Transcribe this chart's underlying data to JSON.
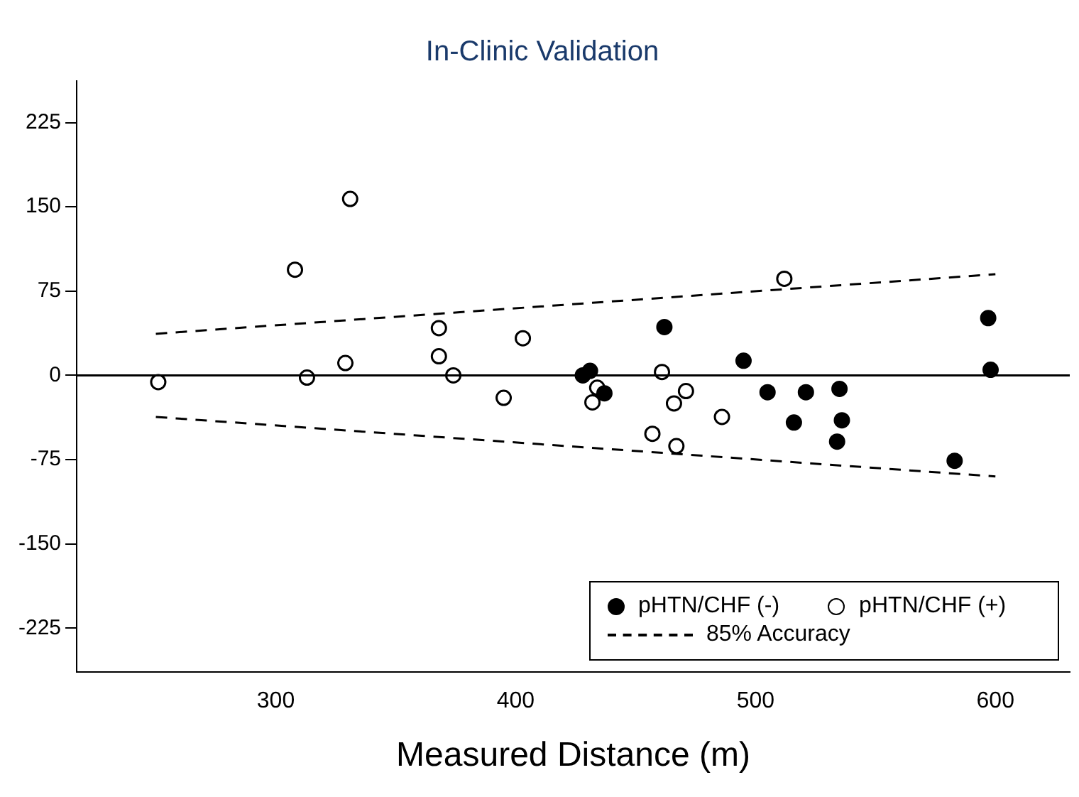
{
  "chart_data": {
    "type": "scatter",
    "title": "In-Clinic Validation",
    "xlabel": "Measured Distance (m)",
    "xlim": [
      217,
      631
    ],
    "xticks": [
      300,
      400,
      500,
      600
    ],
    "ylim": [
      -264,
      262
    ],
    "yticks": [
      -225,
      -150,
      -75,
      0,
      75,
      150,
      225
    ],
    "grid": false,
    "legend": "bottom right",
    "marker": "circle",
    "ref_lines": [
      {
        "axis": "y",
        "value": 0
      }
    ],
    "series": [
      {
        "name": "pHTN/CHF (-)",
        "color": "#000000",
        "x": [
          428,
          431,
          437,
          462,
          495,
          505,
          521,
          516,
          535,
          536,
          534,
          583,
          597,
          598
        ],
        "values": [
          0,
          4,
          -16,
          43,
          13,
          -15,
          -15,
          -42,
          -12,
          -40,
          -59,
          -76,
          51,
          5
        ]
      },
      {
        "name": "pHTN/CHF (+)",
        "color": "#ffffff",
        "x": [
          251,
          313,
          308,
          331,
          329,
          368,
          368,
          374,
          403,
          395,
          512,
          461,
          434,
          432,
          471,
          466,
          486,
          457,
          467
        ],
        "values": [
          -6,
          -2,
          94,
          157,
          11,
          42,
          17,
          0,
          33,
          -20,
          86,
          3,
          -11,
          -24,
          -14,
          -25,
          -37,
          -52,
          -63
        ]
      },
      {
        "name": "85% Accuracy",
        "type": "line",
        "line_style": "dashed",
        "marker": "none",
        "color": "#000000",
        "x": [
          250,
          600
        ],
        "values": [
          37,
          90
        ]
      },
      {
        "type": "line",
        "line_style": "dashed",
        "marker": "none",
        "color": "#000000",
        "x": [
          250,
          600
        ],
        "values": [
          -37,
          -90
        ]
      }
    ]
  }
}
